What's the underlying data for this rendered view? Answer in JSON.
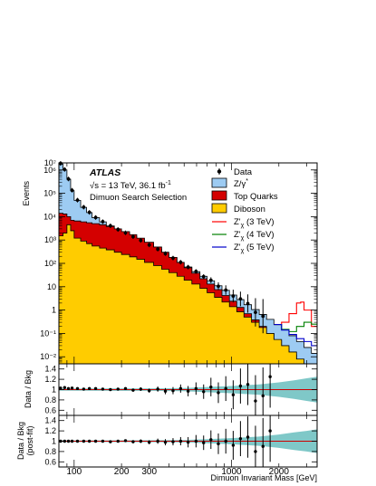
{
  "chart_data": {
    "type": "histogram",
    "annotation": {
      "experiment": "ATLAS",
      "energy_label": "√s = 13 TeV, 36.1 fb",
      "energy_sup": "-1",
      "selection": "Dimuon Search Selection"
    },
    "x_axis": {
      "label": "Dimuon Invariant Mass [GeV]",
      "scale": "log",
      "range": [
        80,
        3500
      ],
      "tick_labels": [
        "100",
        "200",
        "300",
        "1000",
        "2000"
      ],
      "tick_values": [
        100,
        200,
        300,
        1000,
        2000
      ]
    },
    "main_panel": {
      "ylabel": "Events",
      "y_scale": "log",
      "ylim": [
        0.005,
        2000000
      ],
      "tick_labels": [
        "10⁻²",
        "10⁻¹",
        "1",
        "10",
        "10²",
        "10³",
        "10⁴",
        "10⁵",
        "10⁶",
        "10⁷"
      ],
      "tick_values": [
        0.01,
        0.1,
        1,
        10,
        100,
        1000,
        10000,
        100000,
        1000000,
        10000000
      ],
      "legend": [
        {
          "label": "Data",
          "style": "marker",
          "color": "#000000"
        },
        {
          "label": "Z/γ*",
          "style": "fill",
          "color": "#9dcbf2"
        },
        {
          "label": "Top Quarks",
          "style": "fill",
          "color": "#d40000"
        },
        {
          "label": "Diboson",
          "style": "fill",
          "color": "#ffcc00"
        },
        {
          "label": "Z'χ (3 TeV)",
          "style": "line",
          "color": "#ff0000"
        },
        {
          "label": "Z'χ (4 TeV)",
          "style": "line",
          "color": "#008000"
        },
        {
          "label": "Z'χ (5 TeV)",
          "style": "line",
          "color": "#0000cc"
        }
      ],
      "bins": [
        {
          "x": [
            80,
            85
          ],
          "total": 1800000,
          "top": 14000,
          "diboson": 1500
        },
        {
          "x": [
            85,
            90
          ],
          "total": 1000000,
          "top": 13000,
          "diboson": 2000
        },
        {
          "x": [
            90,
            95
          ],
          "total": 400000,
          "top": 10000,
          "diboson": 4500
        },
        {
          "x": [
            95,
            100
          ],
          "total": 130000,
          "top": 7000,
          "diboson": 2500
        },
        {
          "x": [
            100,
            110
          ],
          "total": 50000,
          "top": 6500,
          "diboson": 1200
        },
        {
          "x": [
            110,
            120
          ],
          "total": 25000,
          "top": 6000,
          "diboson": 900
        },
        {
          "x": [
            120,
            130
          ],
          "total": 15000,
          "top": 5500,
          "diboson": 700
        },
        {
          "x": [
            130,
            145
          ],
          "total": 9000,
          "top": 5000,
          "diboson": 550
        },
        {
          "x": [
            145,
            160
          ],
          "total": 6000,
          "top": 4500,
          "diboson": 450
        },
        {
          "x": [
            160,
            180
          ],
          "total": 4000,
          "top": 3800,
          "diboson": 380
        },
        {
          "x": [
            180,
            200
          ],
          "total": 2800,
          "top": 3000,
          "diboson": 300
        },
        {
          "x": [
            200,
            225
          ],
          "total": 2000,
          "top": 2300,
          "diboson": 240
        },
        {
          "x": [
            225,
            250
          ],
          "total": 1400,
          "top": 1700,
          "diboson": 190
        },
        {
          "x": [
            250,
            280
          ],
          "total": 950,
          "top": 1200,
          "diboson": 150
        },
        {
          "x": [
            280,
            320
          ],
          "total": 620,
          "top": 800,
          "diboson": 110
        },
        {
          "x": [
            320,
            360
          ],
          "total": 400,
          "top": 500,
          "diboson": 80
        },
        {
          "x": [
            360,
            400
          ],
          "total": 260,
          "top": 300,
          "diboson": 56
        },
        {
          "x": [
            400,
            450
          ],
          "total": 170,
          "top": 180,
          "diboson": 40
        },
        {
          "x": [
            450,
            500
          ],
          "total": 110,
          "top": 110,
          "diboson": 28
        },
        {
          "x": [
            500,
            560
          ],
          "total": 70,
          "top": 65,
          "diboson": 19
        },
        {
          "x": [
            560,
            630
          ],
          "total": 44,
          "top": 38,
          "diboson": 13
        },
        {
          "x": [
            630,
            700
          ],
          "total": 28,
          "top": 22,
          "diboson": 8.5
        },
        {
          "x": [
            700,
            780
          ],
          "total": 18,
          "top": 13,
          "diboson": 5.5
        },
        {
          "x": [
            780,
            870
          ],
          "total": 11,
          "top": 7.5,
          "diboson": 3.5
        },
        {
          "x": [
            870,
            970
          ],
          "total": 7,
          "top": 4.2,
          "diboson": 2.2
        },
        {
          "x": [
            970,
            1080
          ],
          "total": 4.4,
          "top": 2.4,
          "diboson": 1.4
        },
        {
          "x": [
            1080,
            1200
          ],
          "total": 2.8,
          "top": 1.3,
          "diboson": 0.85
        },
        {
          "x": [
            1200,
            1340
          ],
          "total": 1.7,
          "top": 0.7,
          "diboson": 0.5
        },
        {
          "x": [
            1340,
            1500
          ],
          "total": 1.05,
          "top": 0.38,
          "diboson": 0.3
        },
        {
          "x": [
            1500,
            1670
          ],
          "total": 0.65,
          "top": 0.2,
          "diboson": 0.18
        },
        {
          "x": [
            1670,
            1860
          ],
          "total": 0.4,
          "top": 0.1,
          "diboson": 0.1
        },
        {
          "x": [
            1860,
            2080
          ],
          "total": 0.24,
          "top": 0.05,
          "diboson": 0.055
        },
        {
          "x": [
            2080,
            2320
          ],
          "total": 0.14,
          "top": 0.025,
          "diboson": 0.03
        },
        {
          "x": [
            2320,
            2590
          ],
          "total": 0.08,
          "top": 0.012,
          "diboson": 0.016
        },
        {
          "x": [
            2590,
            2890
          ],
          "total": 0.045,
          "top": 0.006,
          "diboson": 0.008
        },
        {
          "x": [
            2890,
            3220
          ],
          "total": 0.025,
          "top": 0.003,
          "diboson": 0.004
        },
        {
          "x": [
            3220,
            3500
          ],
          "total": 0.014,
          "top": 0.0015,
          "diboson": 0.002
        }
      ],
      "signals": [
        {
          "name": "Z'χ (3 TeV)",
          "color": "#ff0000",
          "x": [
            1860,
            2080,
            2320,
            2590,
            2750,
            2890,
            3220,
            3500
          ],
          "y": [
            0.24,
            0.3,
            0.7,
            2.0,
            2.2,
            1.0,
            0.2,
            0.04
          ]
        },
        {
          "name": "Z'χ (4 TeV)",
          "color": "#008000",
          "x": [
            1860,
            2080,
            2320,
            2590,
            2890,
            3220,
            3500
          ],
          "y": [
            0.24,
            0.15,
            0.12,
            0.2,
            0.3,
            0.25,
            0.1
          ]
        },
        {
          "name": "Z'χ (5 TeV)",
          "color": "#0000cc",
          "x": [
            1860,
            2080,
            2320,
            2590,
            2890,
            3220,
            3500
          ],
          "y": [
            0.24,
            0.14,
            0.09,
            0.06,
            0.045,
            0.03,
            0.02
          ]
        }
      ],
      "data_points": [
        {
          "x": 82,
          "y": 1900000
        },
        {
          "x": 87,
          "y": 1050000
        },
        {
          "x": 92,
          "y": 410000
        },
        {
          "x": 97,
          "y": 135000
        },
        {
          "x": 105,
          "y": 51000
        },
        {
          "x": 115,
          "y": 25500
        },
        {
          "x": 125,
          "y": 15300
        },
        {
          "x": 137,
          "y": 9200
        },
        {
          "x": 152,
          "y": 6100
        },
        {
          "x": 170,
          "y": 4050
        },
        {
          "x": 190,
          "y": 2820
        },
        {
          "x": 212,
          "y": 2030
        },
        {
          "x": 237,
          "y": 1390
        },
        {
          "x": 265,
          "y": 960
        },
        {
          "x": 300,
          "y": 615
        },
        {
          "x": 340,
          "y": 405
        },
        {
          "x": 380,
          "y": 262
        },
        {
          "x": 425,
          "y": 168
        },
        {
          "x": 475,
          "y": 112
        },
        {
          "x": 530,
          "y": 69
        },
        {
          "x": 595,
          "y": 45
        },
        {
          "x": 665,
          "y": 27
        },
        {
          "x": 740,
          "y": 19
        },
        {
          "x": 825,
          "y": 10.5
        },
        {
          "x": 920,
          "y": 7.2
        },
        {
          "x": 1025,
          "y": 4.0
        },
        {
          "x": 1140,
          "y": 3.0
        },
        {
          "x": 1270,
          "y": 1.9
        },
        {
          "x": 1420,
          "y": 0.8
        },
        {
          "x": 1585,
          "y": 0.55
        }
      ]
    },
    "ratio_panels": [
      {
        "ylabel": "Data / Bkg",
        "ylim": [
          0.5,
          1.5
        ],
        "tick_labels": [
          "0.6",
          "0.8",
          "1",
          "1.2",
          "1.4"
        ],
        "tick_values": [
          0.6,
          0.8,
          1.0,
          1.2,
          1.4
        ],
        "band_color": "#7fc8c8",
        "reference_line_color": "#cc0000",
        "band": {
          "x": [
            80,
            300,
            500,
            700,
            1000,
            1500,
            2000,
            2500,
            3000,
            3500
          ],
          "half_width": [
            0.02,
            0.025,
            0.03,
            0.05,
            0.07,
            0.1,
            0.14,
            0.18,
            0.22,
            0.25
          ]
        },
        "points": [
          {
            "x": 82,
            "y": 1.03,
            "err": 0.01
          },
          {
            "x": 87,
            "y": 1.04,
            "err": 0.01
          },
          {
            "x": 92,
            "y": 1.02,
            "err": 0.01
          },
          {
            "x": 97,
            "y": 1.03,
            "err": 0.01
          },
          {
            "x": 105,
            "y": 1.02,
            "err": 0.01
          },
          {
            "x": 115,
            "y": 1.01,
            "err": 0.01
          },
          {
            "x": 125,
            "y": 1.02,
            "err": 0.01
          },
          {
            "x": 137,
            "y": 1.02,
            "err": 0.015
          },
          {
            "x": 152,
            "y": 1.01,
            "err": 0.015
          },
          {
            "x": 170,
            "y": 1.0,
            "err": 0.02
          },
          {
            "x": 190,
            "y": 1.01,
            "err": 0.02
          },
          {
            "x": 212,
            "y": 1.02,
            "err": 0.025
          },
          {
            "x": 237,
            "y": 0.99,
            "err": 0.03
          },
          {
            "x": 265,
            "y": 1.01,
            "err": 0.035
          },
          {
            "x": 300,
            "y": 0.98,
            "err": 0.04
          },
          {
            "x": 340,
            "y": 1.01,
            "err": 0.05
          },
          {
            "x": 380,
            "y": 0.97,
            "err": 0.06
          },
          {
            "x": 425,
            "y": 0.98,
            "err": 0.07
          },
          {
            "x": 475,
            "y": 1.02,
            "err": 0.08
          },
          {
            "x": 530,
            "y": 0.97,
            "err": 0.1
          },
          {
            "x": 595,
            "y": 1.02,
            "err": 0.12
          },
          {
            "x": 665,
            "y": 0.96,
            "err": 0.14
          },
          {
            "x": 740,
            "y": 1.05,
            "err": 0.18
          },
          {
            "x": 825,
            "y": 0.94,
            "err": 0.2
          },
          {
            "x": 920,
            "y": 1.02,
            "err": 0.24
          },
          {
            "x": 1025,
            "y": 0.9,
            "err": 0.28
          },
          {
            "x": 1140,
            "y": 1.07,
            "err": 0.34
          },
          {
            "x": 1270,
            "y": 1.1,
            "err": 0.4
          },
          {
            "x": 1420,
            "y": 0.78,
            "err": 0.5
          },
          {
            "x": 1585,
            "y": 0.88,
            "err": 0.55
          },
          {
            "x": 1760,
            "y": 1.25,
            "err": 0.6
          }
        ]
      },
      {
        "ylabel": "Data / Bkg",
        "ylabel_sub": "(post-fit)",
        "ylim": [
          0.5,
          1.5
        ],
        "tick_labels": [
          "0.6",
          "0.8",
          "1",
          "1.2",
          "1.4"
        ],
        "tick_values": [
          0.6,
          0.8,
          1.0,
          1.2,
          1.4
        ],
        "band_color": "#7fc8c8",
        "reference_line_color": "#cc0000",
        "band": {
          "x": [
            80,
            300,
            500,
            700,
            1000,
            1500,
            2000,
            2500,
            3000,
            3500
          ],
          "half_width": [
            0.015,
            0.02,
            0.025,
            0.04,
            0.06,
            0.09,
            0.13,
            0.17,
            0.2,
            0.23
          ]
        },
        "points": [
          {
            "x": 82,
            "y": 1.0,
            "err": 0.01
          },
          {
            "x": 87,
            "y": 1.0,
            "err": 0.01
          },
          {
            "x": 92,
            "y": 1.0,
            "err": 0.01
          },
          {
            "x": 97,
            "y": 1.0,
            "err": 0.01
          },
          {
            "x": 105,
            "y": 1.0,
            "err": 0.01
          },
          {
            "x": 115,
            "y": 1.0,
            "err": 0.01
          },
          {
            "x": 125,
            "y": 1.0,
            "err": 0.01
          },
          {
            "x": 137,
            "y": 1.0,
            "err": 0.015
          },
          {
            "x": 152,
            "y": 1.0,
            "err": 0.015
          },
          {
            "x": 170,
            "y": 0.99,
            "err": 0.02
          },
          {
            "x": 190,
            "y": 1.0,
            "err": 0.02
          },
          {
            "x": 212,
            "y": 1.01,
            "err": 0.025
          },
          {
            "x": 237,
            "y": 0.99,
            "err": 0.03
          },
          {
            "x": 265,
            "y": 1.0,
            "err": 0.035
          },
          {
            "x": 300,
            "y": 0.98,
            "err": 0.04
          },
          {
            "x": 340,
            "y": 1.0,
            "err": 0.05
          },
          {
            "x": 380,
            "y": 0.98,
            "err": 0.06
          },
          {
            "x": 425,
            "y": 0.99,
            "err": 0.07
          },
          {
            "x": 475,
            "y": 1.0,
            "err": 0.08
          },
          {
            "x": 530,
            "y": 0.98,
            "err": 0.1
          },
          {
            "x": 595,
            "y": 1.0,
            "err": 0.12
          },
          {
            "x": 665,
            "y": 0.97,
            "err": 0.14
          },
          {
            "x": 740,
            "y": 1.03,
            "err": 0.18
          },
          {
            "x": 825,
            "y": 0.95,
            "err": 0.2
          },
          {
            "x": 920,
            "y": 1.0,
            "err": 0.24
          },
          {
            "x": 1025,
            "y": 0.92,
            "err": 0.28
          },
          {
            "x": 1140,
            "y": 1.05,
            "err": 0.34
          },
          {
            "x": 1270,
            "y": 1.08,
            "err": 0.4
          },
          {
            "x": 1420,
            "y": 0.8,
            "err": 0.5
          },
          {
            "x": 1585,
            "y": 0.9,
            "err": 0.55
          },
          {
            "x": 1760,
            "y": 1.2,
            "err": 0.6
          }
        ]
      }
    ]
  }
}
